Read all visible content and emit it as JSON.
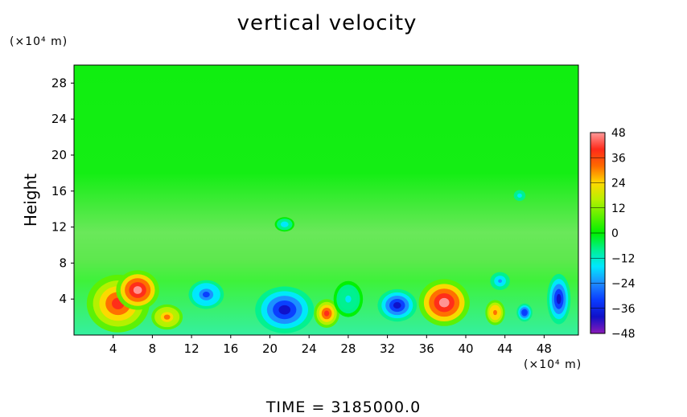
{
  "chart_data": {
    "type": "heatmap",
    "title": "vertical velocity",
    "ylabel": "Height",
    "y_unit": "(×10⁴ m)",
    "x_unit": "(×10⁴ m)",
    "footer": "TIME  =  3185000.0",
    "xlim": [
      0,
      51.5
    ],
    "ylim": [
      0,
      30
    ],
    "x_ticks": [
      4,
      8,
      12,
      16,
      20,
      24,
      28,
      32,
      36,
      40,
      44,
      48
    ],
    "y_ticks": [
      4,
      8,
      12,
      16,
      20,
      24,
      28
    ],
    "colorbar": {
      "range": [
        -48,
        48
      ],
      "ticks": [
        48,
        36,
        24,
        12,
        0,
        -12,
        -24,
        -36,
        -48
      ],
      "stops": [
        {
          "v": 48,
          "c": "#ff9a9a"
        },
        {
          "v": 40,
          "c": "#ff2a1a"
        },
        {
          "v": 32,
          "c": "#ff6a00"
        },
        {
          "v": 24,
          "c": "#ffd800"
        },
        {
          "v": 16,
          "c": "#b8f000"
        },
        {
          "v": 8,
          "c": "#5ef000"
        },
        {
          "v": 0,
          "c": "#00f000"
        },
        {
          "v": -8,
          "c": "#00f090"
        },
        {
          "v": -16,
          "c": "#00e8ff"
        },
        {
          "v": -24,
          "c": "#1e8cff"
        },
        {
          "v": -32,
          "c": "#0a3cff"
        },
        {
          "v": -40,
          "c": "#1010c8"
        },
        {
          "v": -48,
          "c": "#8a1ab8"
        }
      ]
    },
    "features": [
      {
        "x": 4.5,
        "y": 3.5,
        "rx": 3.2,
        "ry": 3.2,
        "value": 38
      },
      {
        "x": 6.5,
        "y": 5.0,
        "rx": 2.2,
        "ry": 2.2,
        "value": 46
      },
      {
        "x": 9.5,
        "y": 2.0,
        "rx": 1.6,
        "ry": 1.4,
        "value": 28
      },
      {
        "x": 13.5,
        "y": 4.5,
        "rx": 1.8,
        "ry": 1.6,
        "value": -32
      },
      {
        "x": 21.5,
        "y": 2.8,
        "rx": 3.0,
        "ry": 2.6,
        "value": -38
      },
      {
        "x": 25.8,
        "y": 2.4,
        "rx": 1.3,
        "ry": 1.6,
        "value": 40
      },
      {
        "x": 33.0,
        "y": 3.3,
        "rx": 2.0,
        "ry": 1.8,
        "value": -38
      },
      {
        "x": 37.8,
        "y": 3.6,
        "rx": 2.6,
        "ry": 2.6,
        "value": 46
      },
      {
        "x": 43.0,
        "y": 2.5,
        "rx": 1.0,
        "ry": 1.4,
        "value": 32
      },
      {
        "x": 46.0,
        "y": 2.5,
        "rx": 0.8,
        "ry": 1.0,
        "value": -36
      },
      {
        "x": 49.5,
        "y": 4.0,
        "rx": 1.2,
        "ry": 2.8,
        "value": -44
      },
      {
        "x": 28.0,
        "y": 4.0,
        "rx": 1.5,
        "ry": 2.0,
        "value": -14
      },
      {
        "x": 43.5,
        "y": 6.0,
        "rx": 1.0,
        "ry": 1.0,
        "value": -22
      },
      {
        "x": 21.5,
        "y": 12.3,
        "rx": 1.0,
        "ry": 0.8,
        "value": -16
      },
      {
        "x": 45.5,
        "y": 15.5,
        "rx": 0.6,
        "ry": 0.6,
        "value": -18
      }
    ]
  }
}
